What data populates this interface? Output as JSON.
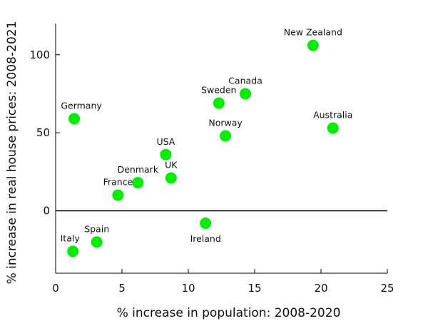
{
  "chart_data": {
    "type": "scatter",
    "title": "",
    "xlabel": "% increase in population: 2008-2020",
    "ylabel": "% increase in real house prices: 2008-2021",
    "xlim": [
      0,
      25
    ],
    "ylim": [
      -40,
      120
    ],
    "x_ticks": [
      0,
      5,
      10,
      15,
      20,
      25
    ],
    "y_ticks": [
      0,
      50,
      100
    ],
    "grid": false,
    "legend": "none",
    "zero_line": true,
    "point_color": "#00ee00",
    "points": [
      {
        "label": "New Zealand",
        "x": 19.4,
        "y": 106
      },
      {
        "label": "Canada",
        "x": 14.3,
        "y": 75
      },
      {
        "label": "Sweden",
        "x": 12.3,
        "y": 69
      },
      {
        "label": "Germany",
        "x": 1.4,
        "y": 59
      },
      {
        "label": "Australia",
        "x": 20.9,
        "y": 53
      },
      {
        "label": "Norway",
        "x": 12.8,
        "y": 48
      },
      {
        "label": "USA",
        "x": 8.3,
        "y": 36
      },
      {
        "label": "UK",
        "x": 8.7,
        "y": 21
      },
      {
        "label": "Denmark",
        "x": 6.2,
        "y": 18
      },
      {
        "label": "France",
        "x": 4.7,
        "y": 10
      },
      {
        "label": "Ireland",
        "x": 11.3,
        "y": -8
      },
      {
        "label": "Spain",
        "x": 3.1,
        "y": -20
      },
      {
        "label": "Italy",
        "x": 1.3,
        "y": -26
      }
    ]
  }
}
